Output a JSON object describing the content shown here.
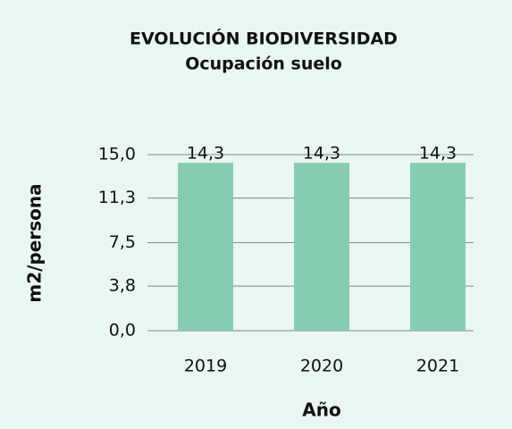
{
  "chart_data": {
    "type": "bar",
    "title": "EVOLUCIÓN BIODIVERSIDAD",
    "subtitle": "Ocupación suelo",
    "x_label": "Año",
    "y_label": "m2/persona",
    "categories": [
      "2019",
      "2020",
      "2021"
    ],
    "values": [
      14.3,
      14.3,
      14.3
    ],
    "value_labels": [
      "14,3",
      "14,3",
      "14,3"
    ],
    "color": "#86cdb0",
    "ylim": [
      0,
      15
    ],
    "yticks": [
      {
        "value": 0,
        "label": "0,0"
      },
      {
        "value": 3.8,
        "label": "3,8"
      },
      {
        "value": 7.5,
        "label": "7,5"
      },
      {
        "value": 11.3,
        "label": "11,3"
      },
      {
        "value": 15,
        "label": "15,0"
      }
    ],
    "grid": true
  }
}
